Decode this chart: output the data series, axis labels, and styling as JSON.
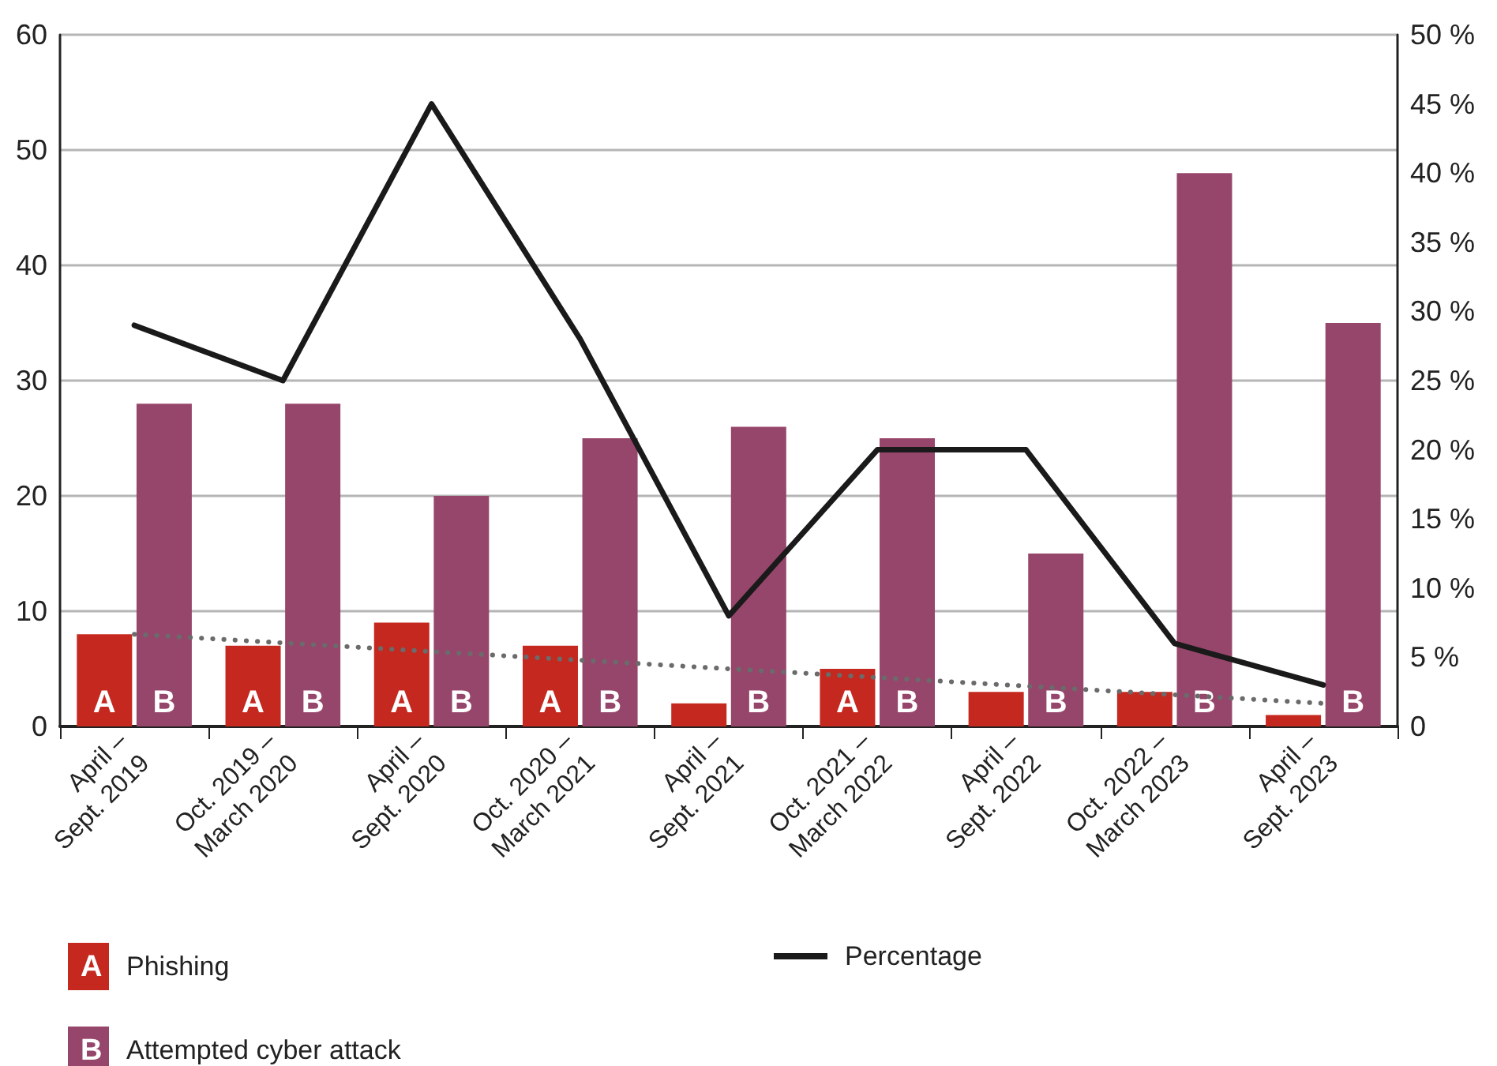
{
  "chart_data": {
    "type": "bar",
    "categories": [
      "April –\nSept. 2019",
      "Oct. 2019 –\nMarch 2020",
      "April –\nSept. 2020",
      "Oct. 2020 –\nMarch 2021",
      "April –\nSept. 2021",
      "Oct. 2021 –\nMarch 2022",
      "April –\nSept. 2022",
      "Oct. 2022 –\nMarch 2023",
      "April –\nSept. 2023"
    ],
    "series": [
      {
        "name": "Phishing",
        "color": "#c4281f",
        "values": [
          8,
          7,
          9,
          7,
          2,
          5,
          3,
          3,
          1
        ],
        "value_labels": [
          "A",
          "A",
          "A",
          "A",
          null,
          "A",
          null,
          null,
          null
        ]
      },
      {
        "name": "Attempted cyber attack",
        "color": "#96466b",
        "values": [
          28,
          28,
          20,
          25,
          26,
          25,
          15,
          48,
          35
        ],
        "value_labels": [
          "B",
          "B",
          "B",
          "B",
          "B",
          "B",
          "B",
          "B",
          "B"
        ]
      },
      {
        "name": "Percentage",
        "type": "line",
        "axis": "y2",
        "color": "#1a1a1a",
        "values": [
          29,
          25,
          45,
          28,
          8,
          20,
          20,
          6,
          3
        ]
      },
      {
        "type": "line",
        "line_style": "dotted",
        "color": "#6b6b6b",
        "x": [
          "April –\nSept. 2019",
          "April –\nSept. 2023"
        ],
        "values": [
          8,
          2
        ]
      }
    ],
    "ylim": [
      0,
      60
    ],
    "yticks": [
      0,
      10,
      20,
      30,
      40,
      50,
      60
    ],
    "y2lim": [
      0,
      50
    ],
    "y2ticks": [
      {
        "value": 0,
        "label": "0"
      },
      {
        "value": 5,
        "label": "5 %"
      },
      {
        "value": 10,
        "label": "10 %"
      },
      {
        "value": 15,
        "label": "15 %"
      },
      {
        "value": 20,
        "label": "20 %"
      },
      {
        "value": 25,
        "label": "25 %"
      },
      {
        "value": 30,
        "label": "30 %"
      },
      {
        "value": 35,
        "label": "35 %"
      },
      {
        "value": 40,
        "label": "40 %"
      },
      {
        "value": 45,
        "label": "45 %"
      },
      {
        "value": 50,
        "label": "50 %"
      }
    ],
    "grid": "y",
    "legend": "bottom",
    "marker": "none"
  }
}
